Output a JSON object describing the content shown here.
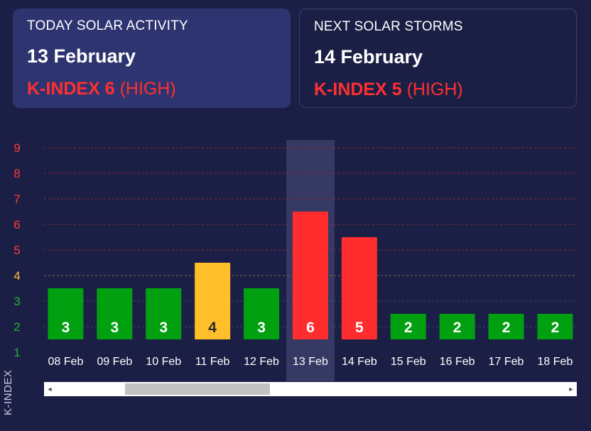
{
  "today": {
    "heading": "TODAY SOLAR ACTIVITY",
    "date": "13 February",
    "k_label": "K-INDEX 6",
    "level": "(HIGH)"
  },
  "next": {
    "heading": "NEXT SOLAR STORMS",
    "date": "14 February",
    "k_label": "K-INDEX 5",
    "level": "(HIGH)"
  },
  "colors": {
    "background": "#1c1f45",
    "card_today": "#2e3470",
    "low": "#00a010",
    "moderate": "#ffbe2a",
    "high": "#ff2d2d",
    "highlight": "#3a3e68"
  },
  "scrollbar": {
    "left_arrow": "◄",
    "right_arrow": "►"
  },
  "chart_data": {
    "type": "bar",
    "title": "",
    "xlabel": "",
    "ylabel": "K-INDEX",
    "ylim": [
      1,
      9
    ],
    "yticks": [
      "1",
      "2",
      "3",
      "4",
      "5",
      "6",
      "7",
      "8",
      "9"
    ],
    "categories": [
      "08 Feb",
      "09 Feb",
      "10 Feb",
      "11 Feb",
      "12 Feb",
      "13 Feb",
      "14 Feb",
      "15 Feb",
      "16 Feb",
      "17 Feb",
      "18 Feb"
    ],
    "values": [
      3,
      3,
      3,
      4,
      3,
      6,
      5,
      2,
      2,
      2,
      2
    ],
    "highlighted_category": "13 Feb",
    "grid": true
  }
}
